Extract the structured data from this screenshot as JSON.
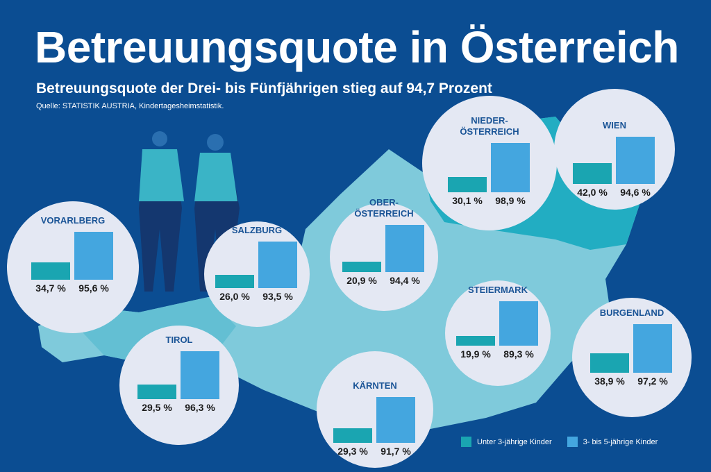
{
  "title": "Betreuungsquote in Österreich",
  "subtitle": "Betreuungsquote der Drei- bis Fünfjährigen stieg auf 94,7 Prozent",
  "source": "Quelle: STATISTIK AUSTRIA, Kindertagesheimstatistik.",
  "colors": {
    "background": "#0b4d92",
    "under3": "#1aa5b1",
    "age3to5": "#44a6df",
    "map": "#7fcadb",
    "map_dark": "#22adc2"
  },
  "chart_data": {
    "type": "bar",
    "title": "Betreuungsquote in Österreich",
    "unit": "%",
    "series": [
      {
        "name": "Unter 3-jährige Kinder",
        "color": "#1aa5b1"
      },
      {
        "name": "3- bis 5-jährige Kinder",
        "color": "#44a6df"
      }
    ],
    "regions": [
      {
        "name": "VORARLBERG",
        "lines": [
          "VORARLBERG"
        ],
        "under3": 34.7,
        "age3to5": 95.6,
        "under3_label": "34,7 %",
        "age3to5_label": "95,6 %"
      },
      {
        "name": "SALZBURG",
        "lines": [
          "SALZBURG"
        ],
        "under3": 26.0,
        "age3to5": 93.5,
        "under3_label": "26,0 %",
        "age3to5_label": "93,5 %"
      },
      {
        "name": "TIROL",
        "lines": [
          "TIROL"
        ],
        "under3": 29.5,
        "age3to5": 96.3,
        "under3_label": "29,5 %",
        "age3to5_label": "96,3 %"
      },
      {
        "name": "OBERÖSTERREICH",
        "lines": [
          "OBER-",
          "ÖSTERREICH"
        ],
        "under3": 20.9,
        "age3to5": 94.4,
        "under3_label": "20,9 %",
        "age3to5_label": "94,4 %"
      },
      {
        "name": "NIEDERÖSTERREICH",
        "lines": [
          "NIEDER-",
          "ÖSTERREICH"
        ],
        "under3": 30.1,
        "age3to5": 98.9,
        "under3_label": "30,1 %",
        "age3to5_label": "98,9 %"
      },
      {
        "name": "WIEN",
        "lines": [
          "WIEN"
        ],
        "under3": 42.0,
        "age3to5": 94.6,
        "under3_label": "42,0 %",
        "age3to5_label": "94,6 %"
      },
      {
        "name": "STEIERMARK",
        "lines": [
          "STEIERMARK"
        ],
        "under3": 19.9,
        "age3to5": 89.3,
        "under3_label": "19,9 %",
        "age3to5_label": "89,3 %"
      },
      {
        "name": "KÄRNTEN",
        "lines": [
          "KÄRNTEN"
        ],
        "under3": 29.3,
        "age3to5": 91.7,
        "under3_label": "29,3 %",
        "age3to5_label": "91,7 %"
      },
      {
        "name": "BURGENLAND",
        "lines": [
          "BURGENLAND"
        ],
        "under3": 38.9,
        "age3to5": 97.2,
        "under3_label": "38,9 %",
        "age3to5_label": "97,2 %"
      }
    ]
  },
  "legend": {
    "under3": "Unter 3-jährige Kinder",
    "age3to5": "3- bis 5-jährige Kinder"
  }
}
